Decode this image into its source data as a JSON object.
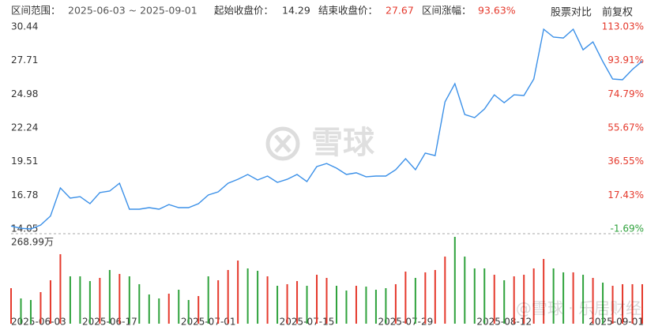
{
  "header": {
    "range_label": "区间范围：",
    "range": "2025-06-03 ~ 2025-09-01",
    "start_label": "起始收盘价：",
    "start_close": "14.29",
    "end_label": "结束收盘价：",
    "end_close": "27.67",
    "change_label": "区间涨幅：",
    "change": "93.63%",
    "compare": "股票对比",
    "adjust": "前复权"
  },
  "watermark": "雪球",
  "credit": "@雪球 · 乐居财经",
  "chart_data": [
    {
      "type": "line",
      "color": "#3b90e8",
      "categories": [
        "2025-06-03",
        null,
        null,
        null,
        null,
        null,
        null,
        null,
        null,
        null,
        "2025-06-17",
        null,
        null,
        null,
        null,
        null,
        null,
        null,
        null,
        null,
        "2025-07-01",
        null,
        null,
        null,
        null,
        null,
        null,
        null,
        null,
        null,
        "2025-07-15",
        null,
        null,
        null,
        null,
        null,
        null,
        null,
        null,
        null,
        "2025-07-29",
        null,
        null,
        null,
        null,
        null,
        null,
        null,
        null,
        null,
        "2025-08-12",
        null,
        null,
        null,
        null,
        null,
        null,
        null,
        null,
        null,
        null,
        null,
        null,
        null,
        "2025-09-01"
      ],
      "values": [
        14.29,
        14.1,
        14.05,
        14.37,
        15.1,
        17.38,
        16.55,
        16.67,
        16.1,
        17.0,
        17.12,
        17.76,
        15.65,
        15.65,
        15.78,
        15.65,
        16.03,
        15.78,
        15.78,
        16.1,
        16.8,
        17.06,
        17.76,
        18.08,
        18.47,
        18.02,
        18.34,
        17.83,
        18.08,
        18.47,
        17.89,
        19.11,
        19.36,
        18.98,
        18.47,
        18.6,
        18.28,
        18.34,
        18.34,
        18.85,
        19.75,
        18.85,
        20.2,
        20.0,
        24.36,
        25.83,
        23.33,
        23.08,
        23.78,
        24.93,
        24.29,
        24.93,
        24.87,
        26.21,
        30.25,
        29.61,
        29.54,
        30.25,
        28.58,
        29.22,
        27.62,
        26.21,
        26.15,
        26.98,
        27.67
      ],
      "ylim": [
        14.05,
        30.44
      ],
      "yticks": [
        14.05,
        16.78,
        19.51,
        22.24,
        24.98,
        27.71,
        30.44
      ],
      "y2lim": [
        -1.69,
        113.03
      ],
      "y2ticks": [
        {
          "value": -1.69,
          "label": "-1.69%"
        },
        {
          "value": 17.43,
          "label": "17.43%"
        },
        {
          "value": 36.55,
          "label": "36.55%"
        },
        {
          "value": 55.67,
          "label": "55.67%"
        },
        {
          "value": 74.79,
          "label": "74.79%"
        },
        {
          "value": 93.91,
          "label": "93.91%"
        },
        {
          "value": 113.03,
          "label": "113.03%"
        }
      ]
    },
    {
      "type": "bar",
      "values": [
        110.0,
        78.2,
        73.4,
        97.8,
        134.5,
        215.2,
        146.7,
        146.7,
        132.0,
        141.8,
        166.3,
        154.1,
        146.7,
        122.3,
        90.5,
        78.2,
        92.9,
        105.2,
        73.4,
        85.6,
        146.7,
        134.5,
        166.3,
        195.6,
        171.2,
        163.8,
        146.7,
        117.4,
        122.3,
        132.0,
        117.4,
        151.6,
        141.8,
        117.4,
        102.7,
        117.4,
        114.9,
        105.2,
        110.0,
        122.3,
        161.4,
        141.8,
        159.0,
        166.3,
        207.9,
        268.99,
        207.9,
        171.2,
        171.2,
        151.6,
        134.5,
        146.7,
        151.6,
        171.2,
        200.5,
        171.2,
        159.0,
        159.0,
        151.6,
        141.8,
        127.2,
        117.4,
        122.3,
        122.3,
        122.3
      ],
      "colors": [
        "#e5392c",
        "#2fa23c",
        "#2fa23c",
        "#e5392c",
        "#e5392c",
        "#e5392c",
        "#2fa23c",
        "#2fa23c",
        "#2fa23c",
        "#e5392c",
        "#2fa23c",
        "#e5392c",
        "#2fa23c",
        "#2fa23c",
        "#2fa23c",
        "#2fa23c",
        "#e5392c",
        "#2fa23c",
        "#2fa23c",
        "#e5392c",
        "#2fa23c",
        "#e5392c",
        "#e5392c",
        "#e5392c",
        "#2fa23c",
        "#2fa23c",
        "#e5392c",
        "#2fa23c",
        "#e5392c",
        "#e5392c",
        "#2fa23c",
        "#e5392c",
        "#e5392c",
        "#2fa23c",
        "#2fa23c",
        "#e5392c",
        "#2fa23c",
        "#2fa23c",
        "#2fa23c",
        "#e5392c",
        "#e5392c",
        "#2fa23c",
        "#e5392c",
        "#e5392c",
        "#e5392c",
        "#2fa23c",
        "#2fa23c",
        "#2fa23c",
        "#2fa23c",
        "#e5392c",
        "#2fa23c",
        "#e5392c",
        "#e5392c",
        "#e5392c",
        "#e5392c",
        "#2fa23c",
        "#2fa23c",
        "#e5392c",
        "#2fa23c",
        "#e5392c",
        "#2fa23c",
        "#e5392c",
        "#e5392c",
        "#e5392c",
        "#e5392c"
      ],
      "ylim": [
        0,
        268.99
      ],
      "yticks": [
        {
          "value": 268.99,
          "label": "268.99万"
        }
      ]
    }
  ]
}
